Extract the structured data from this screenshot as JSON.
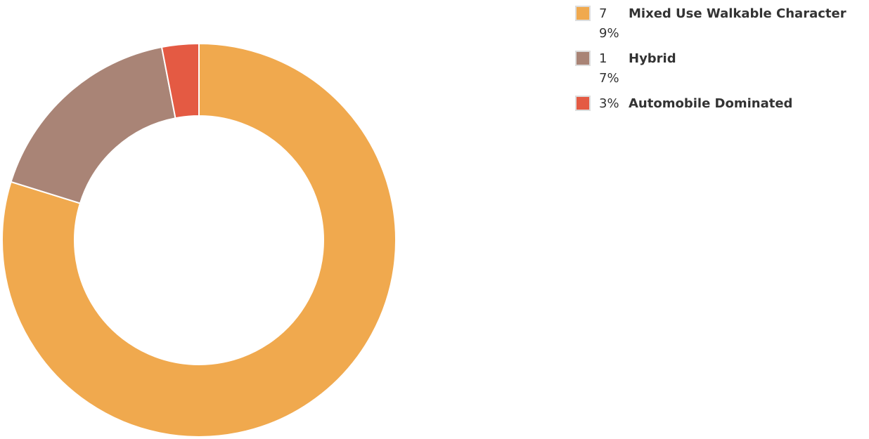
{
  "chart_data": {
    "type": "donut",
    "categories": [
      "Mixed Use Walkable Character",
      "Hybrid",
      "Automobile Dominated"
    ],
    "values": [
      79,
      17,
      3
    ],
    "value_labels": [
      "79%",
      "17%",
      "3%"
    ],
    "colors": [
      "#f0a94e",
      "#a98476",
      "#e45a43"
    ]
  }
}
